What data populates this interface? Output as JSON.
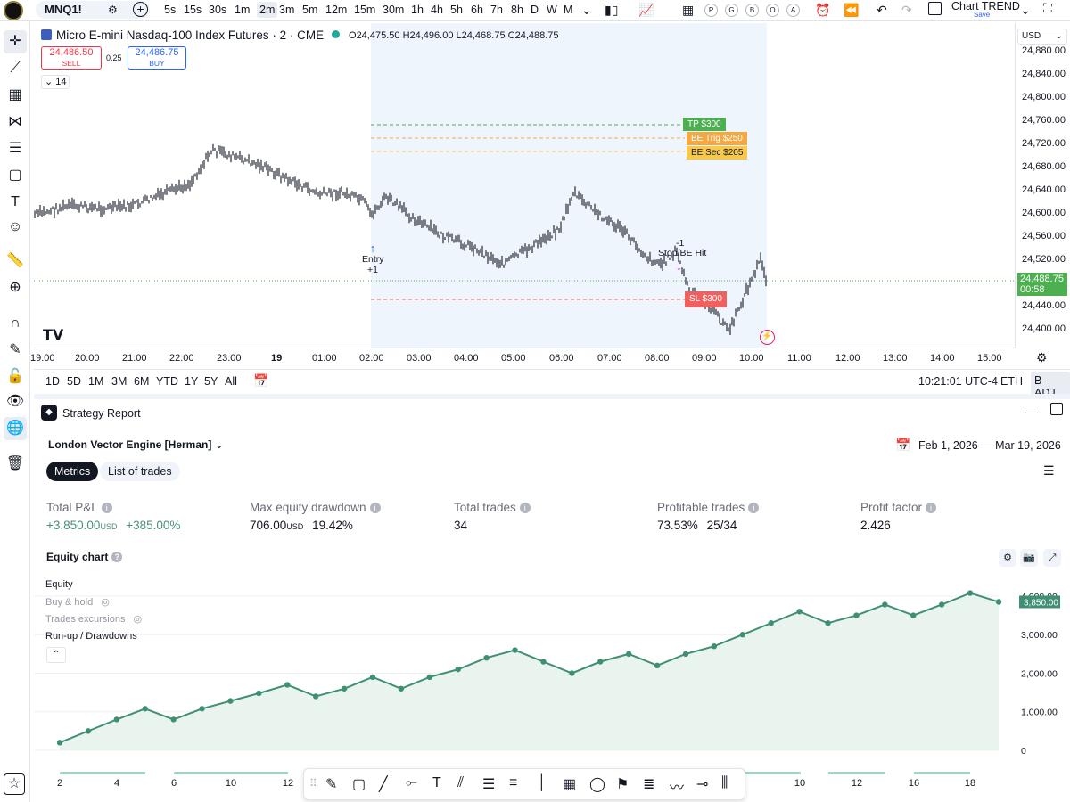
{
  "toolbar": {
    "symbol": "MNQ1!",
    "timeframes": [
      "5s",
      "15s",
      "30s",
      "1m",
      "2m",
      "3m",
      "5m",
      "12m",
      "15m",
      "30m",
      "1h",
      "4h",
      "5h",
      "6h",
      "7h",
      "8h",
      "D",
      "W",
      "M"
    ],
    "active_timeframe": "2m",
    "indicator_circles": [
      "P",
      "G",
      "B",
      "O",
      "A"
    ],
    "layout_name": "Chart TREND",
    "save_label": "Save"
  },
  "chart": {
    "title": "Micro E-mini Nasdaq-100 Index Futures · 2 · CME",
    "ohlc": {
      "o_label": "O",
      "o": "24,475.50",
      "h_label": "H",
      "h": "24,496.00",
      "l_label": "L",
      "l": "24,468.75",
      "c_label": "C",
      "c": "24,488.75"
    },
    "sell_price": "24,486.50",
    "sell_label": "SELL",
    "spread": "0.25",
    "buy_price": "24,486.75",
    "buy_label": "BUY",
    "indicator_count": "14",
    "currency": "USD",
    "price_ticks": [
      "24,880.00",
      "24,840.00",
      "24,800.00",
      "24,760.00",
      "24,720.00",
      "24,680.00",
      "24,640.00",
      "24,600.00",
      "24,560.00",
      "24,520.00",
      "24,440.00",
      "24,400.00"
    ],
    "last_price": "24,488.75",
    "countdown": "00:58",
    "time_ticks": [
      "19:00",
      "20:00",
      "21:00",
      "22:00",
      "23:00",
      "19",
      "01:00",
      "02:00",
      "03:00",
      "04:00",
      "05:00",
      "06:00",
      "07:00",
      "08:00",
      "09:00",
      "10:00",
      "11:00",
      "12:00",
      "13:00",
      "14:00",
      "15:00"
    ],
    "annotations": {
      "entry_label": "Entry",
      "entry_qty": "+1",
      "stop_qty": "-1",
      "stop_label": "Stop/BE Hit",
      "tp": "TP  $300",
      "be_trig": "BE Trig  $250",
      "be_sec": "BE Sec  $205",
      "sl": "SL  $300"
    },
    "colors": {
      "up": "#131722",
      "sell": "#f23645",
      "buy": "#2962ff",
      "tp": "#4caf50",
      "be_trig": "#f5a742",
      "be_sec": "#f7c84a",
      "sl": "#f0605e",
      "last_price": "#4caf50"
    }
  },
  "range_bar": {
    "ranges": [
      "1D",
      "5D",
      "1M",
      "3M",
      "6M",
      "YTD",
      "1Y",
      "5Y",
      "All"
    ],
    "clock": "10:21:01 UTC-4",
    "session": "ETH",
    "adjust": "B-ADJ"
  },
  "report": {
    "tab_title": "Strategy Report",
    "strategy_name": "London Vector Engine [Herman]",
    "date_range": "Feb 1, 2026 — Mar 19, 2026",
    "tabs": [
      "Metrics",
      "List of trades"
    ],
    "metrics": [
      {
        "title": "Total P&L",
        "value": "+3,850.00",
        "unit": "USD",
        "extra": "+385.00%"
      },
      {
        "title": "Max equity drawdown",
        "value": "706.00",
        "unit": "USD",
        "extra": "19.42%"
      },
      {
        "title": "Total trades",
        "value": "34",
        "unit": "",
        "extra": ""
      },
      {
        "title": "Profitable trades",
        "value": "73.53%",
        "unit": "",
        "extra": "25/34"
      },
      {
        "title": "Profit factor",
        "value": "2.426",
        "unit": "",
        "extra": ""
      }
    ],
    "equity_title": "Equity chart",
    "legend": [
      "Equity",
      "Buy & hold",
      "Trades excursions",
      "Run-up / Drawdowns"
    ],
    "last_equity": "3,850.00"
  },
  "chart_data": {
    "type": "area",
    "title": "Equity chart",
    "x_ticks": [
      "2",
      "4",
      "6",
      "10",
      "12",
      "16",
      "18"
    ],
    "y_ticks": [
      "0",
      "1,000.00",
      "2,000.00",
      "3,000.00",
      "4,000.00"
    ],
    "ylim": [
      0,
      4300
    ],
    "series": [
      {
        "name": "Equity",
        "values": [
          200,
          500,
          800,
          1080,
          800,
          1080,
          1280,
          1480,
          1700,
          1400,
          1600,
          1900,
          1600,
          1900,
          2100,
          2400,
          2600,
          2300,
          2000,
          2300,
          2500,
          2200,
          2500,
          2700,
          3000,
          3300,
          3600,
          3300,
          3500,
          3780,
          3500,
          3780,
          4080,
          3850
        ]
      }
    ],
    "grid": true,
    "legend_position": "top-left"
  }
}
